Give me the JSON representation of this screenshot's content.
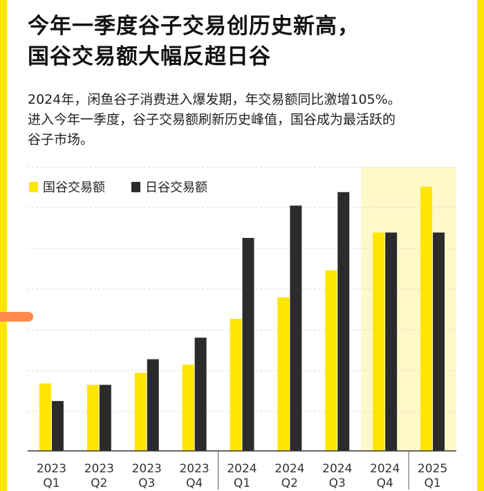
{
  "title_lines": [
    "今年一季度谷子交易创历史新高，",
    "国谷交易额大幅反超日谷"
  ],
  "description_lines": [
    "2024年，闲鱼谷子消费进入爆发期，年交易额同比激增105%。",
    "进入今年一季度，谷子交易额刷新历史峰值，国谷成为最活跃的",
    "谷子市场。"
  ],
  "colors": {
    "accent": "#FFE600",
    "bar_guogu": "#FFE600",
    "bar_rigu": "#2B2B2B",
    "highlight_bg": "#FFF8C8",
    "side_tab": "#FF8A4C"
  },
  "chart_data": {
    "type": "bar",
    "title": "",
    "xlabel": "",
    "ylabel": "",
    "y_axis_labels_shown": false,
    "grid": "horizontal dashed",
    "legend_position": "top-left",
    "highlighted_categories": [
      "2024 Q4",
      "2025 Q1"
    ],
    "categories": [
      {
        "line1": "2023",
        "line2": "Q1"
      },
      {
        "line1": "2023",
        "line2": "Q2"
      },
      {
        "line1": "2023",
        "line2": "Q3"
      },
      {
        "line1": "2023",
        "line2": "Q4"
      },
      {
        "line1": "2024",
        "line2": "Q1"
      },
      {
        "line1": "2024",
        "line2": "Q2"
      },
      {
        "line1": "2024",
        "line2": "Q3"
      },
      {
        "line1": "2024",
        "line2": "Q4"
      },
      {
        "line1": "2025",
        "line2": "Q1"
      }
    ],
    "ylim": [
      0,
      100
    ],
    "series": [
      {
        "name": "国谷交易额",
        "color": "#FFE600",
        "values": [
          25,
          24.5,
          29,
          32,
          49,
          57,
          67,
          81,
          98
        ]
      },
      {
        "name": "日谷交易额",
        "color": "#2B2B2B",
        "values": [
          18.5,
          24.5,
          34,
          42,
          79,
          91,
          96,
          81,
          81
        ]
      }
    ]
  }
}
